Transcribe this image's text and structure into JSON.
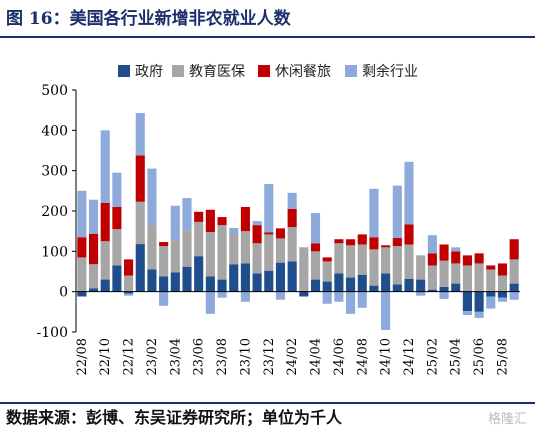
{
  "title": "图 16：美国各行业新增非农就业人数",
  "source": "数据来源：彭博、东吴证券研究所；单位为千人",
  "watermark": "格隆汇",
  "chart_data": {
    "type": "bar",
    "stacked": true,
    "legend_position": "top",
    "grid": false,
    "ylim": [
      -100,
      500
    ],
    "yticks": [
      -100,
      0,
      100,
      200,
      300,
      400,
      500
    ],
    "categories": [
      "22/08",
      "22/09",
      "22/10",
      "22/11",
      "22/12",
      "23/01",
      "23/02",
      "23/03",
      "23/04",
      "23/05",
      "23/06",
      "23/07",
      "23/08",
      "23/09",
      "23/10",
      "23/11",
      "23/12",
      "24/01",
      "24/02",
      "24/03",
      "24/04",
      "24/05",
      "24/06",
      "24/07",
      "24/08",
      "24/09",
      "24/10",
      "24/11",
      "24/12",
      "25/01",
      "25/02",
      "25/03",
      "25/04",
      "25/05",
      "25/06",
      "25/07",
      "25/08",
      "25/09"
    ],
    "xtick_labels": [
      "22/08",
      "22/10",
      "22/12",
      "23/02",
      "23/04",
      "23/06",
      "23/08",
      "23/10",
      "23/12",
      "24/02",
      "24/04",
      "24/06",
      "24/08",
      "24/10",
      "24/12",
      "25/02",
      "25/04",
      "25/06",
      "25/08"
    ],
    "series": [
      {
        "name": "政府",
        "color": "#1f4e8c",
        "values": [
          -12,
          8,
          30,
          65,
          -5,
          118,
          55,
          38,
          48,
          62,
          88,
          38,
          30,
          68,
          70,
          45,
          52,
          72,
          75,
          -12,
          30,
          25,
          45,
          35,
          42,
          15,
          45,
          18,
          32,
          30,
          5,
          12,
          20,
          -48,
          -50,
          -12,
          -15,
          20
        ]
      },
      {
        "name": "教育医保",
        "color": "#a6a6a6",
        "values": [
          85,
          60,
          95,
          90,
          40,
          105,
          110,
          75,
          80,
          90,
          85,
          110,
          135,
          75,
          80,
          75,
          90,
          60,
          85,
          110,
          70,
          50,
          75,
          80,
          75,
          90,
          65,
          95,
          85,
          60,
          60,
          65,
          50,
          65,
          70,
          55,
          40,
          60
        ]
      },
      {
        "name": "休闲餐旅",
        "color": "#c00000",
        "values": [
          50,
          75,
          95,
          55,
          40,
          115,
          0,
          10,
          0,
          0,
          25,
          55,
          20,
          0,
          60,
          45,
          5,
          25,
          45,
          0,
          20,
          10,
          10,
          15,
          25,
          30,
          5,
          20,
          50,
          0,
          30,
          40,
          30,
          25,
          25,
          10,
          30,
          50
        ]
      },
      {
        "name": "剩余行业",
        "color": "#8eaadb",
        "values": [
          115,
          85,
          180,
          85,
          -5,
          105,
          140,
          -35,
          85,
          80,
          0,
          -55,
          -15,
          15,
          -25,
          10,
          120,
          -20,
          40,
          0,
          75,
          -30,
          -25,
          -55,
          -40,
          120,
          -95,
          130,
          155,
          -10,
          45,
          -18,
          10,
          -10,
          -15,
          -30,
          -10,
          -20
        ]
      }
    ]
  }
}
